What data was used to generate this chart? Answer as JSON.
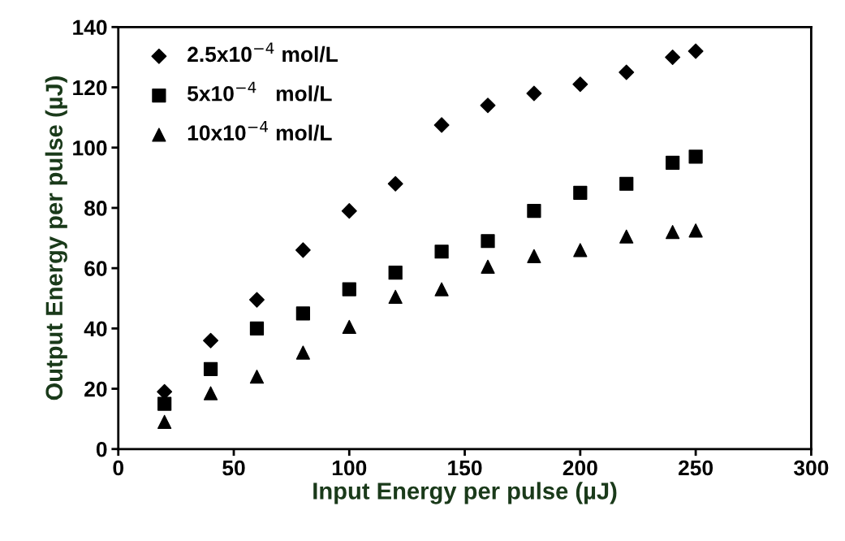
{
  "chart_data": {
    "type": "scatter",
    "xlabel": "Input Energy per pulse (µJ)",
    "ylabel": "Output Energy per pulse (µJ)",
    "x": [
      20,
      40,
      60,
      80,
      100,
      120,
      140,
      160,
      180,
      200,
      220,
      240,
      250
    ],
    "series": [
      {
        "name": "2.5x10$^{−4}$ mol/L",
        "color": "#000000",
        "marker": "diamond",
        "values": [
          19,
          36,
          49.5,
          66,
          79,
          88,
          107.5,
          114,
          118,
          121,
          125,
          130,
          132
        ]
      },
      {
        "name": "5x10$^{−4}$   mol/L",
        "color": "#000000",
        "marker": "square",
        "values": [
          15,
          26.5,
          40,
          45,
          53,
          58.5,
          65.5,
          69,
          79,
          85,
          88,
          95,
          97
        ]
      },
      {
        "name": "10x10$^{−4}$ mol/L",
        "color": "#000000",
        "marker": "triangle",
        "values": [
          9,
          18.5,
          24,
          32,
          40.5,
          50.5,
          53,
          60.5,
          64,
          66,
          70.5,
          72,
          72.5
        ]
      }
    ],
    "xlim": [
      0,
      300
    ],
    "xticks": [
      0,
      50,
      100,
      150,
      200,
      250,
      300
    ],
    "ylim": [
      0,
      140
    ],
    "yticks": [
      0,
      20,
      40,
      60,
      80,
      100,
      120,
      140
    ],
    "grid": false,
    "legend": "top left"
  }
}
